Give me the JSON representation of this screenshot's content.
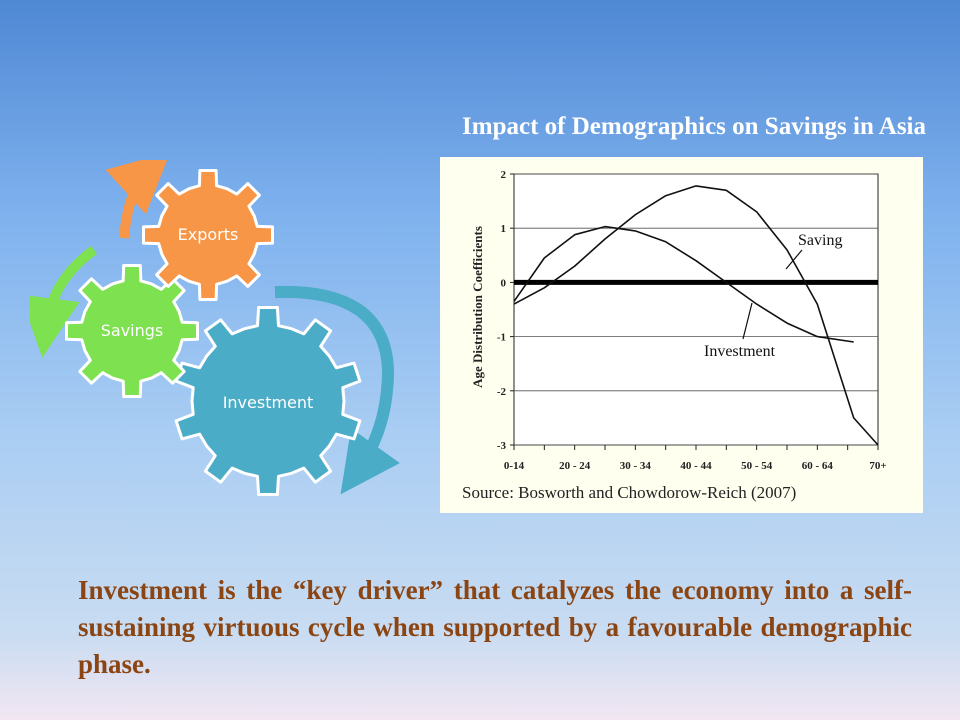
{
  "slide": {
    "title": "Impact of Demographics on Savings in Asia",
    "caption": "Investment is the “key driver” that catalyzes the economy into a self-sustaining virtuous cycle when supported by a favourable demographic phase."
  },
  "cycle": {
    "gears": [
      {
        "label": "Exports",
        "color": "#f79646"
      },
      {
        "label": "Savings",
        "color": "#7ee14f"
      },
      {
        "label": "Investment",
        "color": "#4aacc6"
      }
    ],
    "arrow_colors": {
      "exports": "#f79646",
      "savings": "#7ee14f",
      "investment": "#4aacc6"
    }
  },
  "chart_data": {
    "type": "line",
    "ylabel": "Age Distribution Coefficients",
    "xlabel": "",
    "source": "Source: Bosworth and Chowdorow-Reich (2007)",
    "x_tick_labels": [
      "0-14",
      "20 - 24",
      "30 - 34",
      "40 - 44",
      "50 - 54",
      "60 - 64",
      "70+"
    ],
    "x_tick_positions": [
      0,
      2,
      4,
      6,
      8,
      10,
      12
    ],
    "ylim": [
      -3,
      2
    ],
    "y_ticks": [
      2,
      1,
      0,
      -1,
      -2,
      -3
    ],
    "xlim": [
      0,
      12
    ],
    "grid": true,
    "series": [
      {
        "name": "Saving",
        "x": [
          0,
          1,
          2,
          3,
          4,
          5,
          6,
          7,
          8,
          9,
          10,
          11.2
        ],
        "values": [
          -0.35,
          0.45,
          0.88,
          1.03,
          0.95,
          0.75,
          0.4,
          0.0,
          -0.4,
          -0.75,
          -1.0,
          -1.1
        ]
      },
      {
        "name": "Investment",
        "x": [
          0,
          1,
          2,
          3,
          4,
          5,
          6,
          7,
          8,
          9,
          10,
          11.2,
          12
        ],
        "values": [
          -0.4,
          -0.1,
          0.3,
          0.8,
          1.25,
          1.6,
          1.78,
          1.7,
          1.3,
          0.6,
          -0.4,
          -2.5,
          -3.0
        ]
      }
    ],
    "annotations": [
      {
        "text": "Saving"
      },
      {
        "text": "Investment"
      }
    ]
  }
}
